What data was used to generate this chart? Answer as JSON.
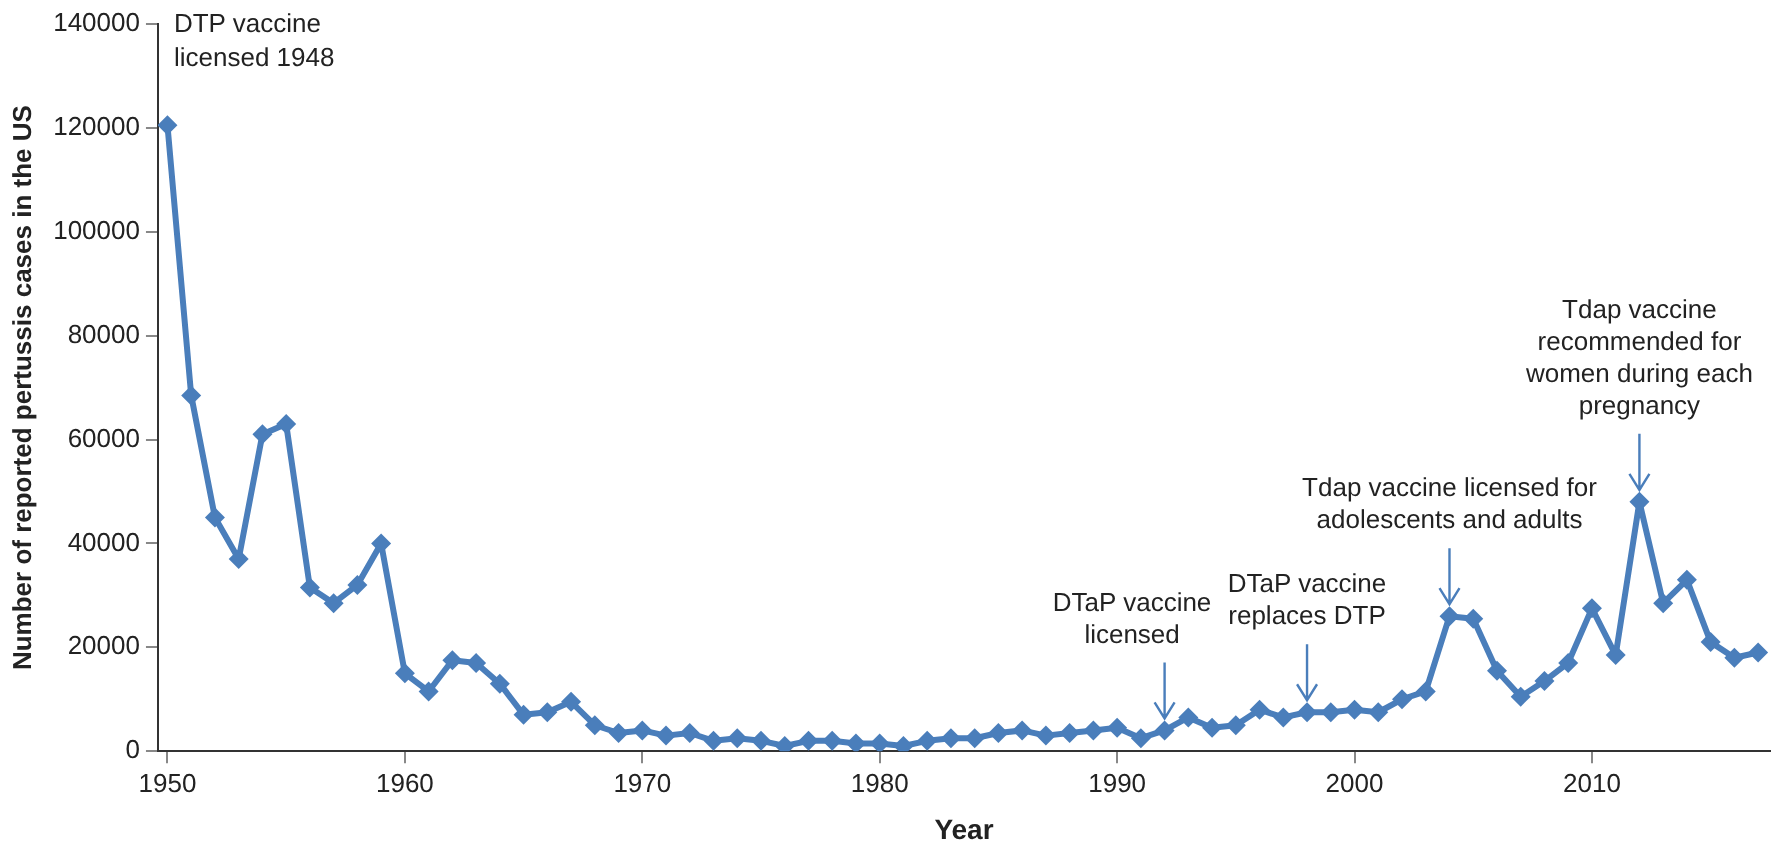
{
  "chart_data": {
    "type": "line",
    "xlabel": "Year",
    "ylabel": "Number of reported pertussis cases in the US",
    "x": [
      1950,
      1951,
      1952,
      1953,
      1954,
      1955,
      1956,
      1957,
      1958,
      1959,
      1960,
      1961,
      1962,
      1963,
      1964,
      1965,
      1966,
      1967,
      1968,
      1969,
      1970,
      1971,
      1972,
      1973,
      1974,
      1975,
      1976,
      1977,
      1978,
      1979,
      1980,
      1981,
      1982,
      1983,
      1984,
      1985,
      1986,
      1987,
      1988,
      1989,
      1990,
      1991,
      1992,
      1993,
      1994,
      1995,
      1996,
      1997,
      1998,
      1999,
      2000,
      2001,
      2002,
      2003,
      2004,
      2005,
      2006,
      2007,
      2008,
      2009,
      2010,
      2011,
      2012,
      2013,
      2014,
      2015,
      2016,
      2017
    ],
    "series": [
      {
        "color": "#4a7ebb",
        "values": [
          120500,
          68500,
          45000,
          37000,
          61000,
          63000,
          31500,
          28500,
          32000,
          40000,
          15000,
          11500,
          17500,
          17000,
          13000,
          7000,
          7500,
          9500,
          5000,
          3500,
          4000,
          3000,
          3500,
          2000,
          2500,
          2000,
          1000,
          2000,
          2000,
          1500,
          1500,
          1000,
          2000,
          2500,
          2500,
          3500,
          4000,
          3000,
          3500,
          4000,
          4500,
          2500,
          4000,
          6500,
          4500,
          5000,
          8000,
          6500,
          7500,
          7500,
          8000,
          7500,
          10000,
          11500,
          26000,
          25500,
          15500,
          10500,
          13500,
          17000,
          27500,
          18500,
          48000,
          28500,
          33000,
          21000,
          18000,
          19000
        ]
      }
    ],
    "xlim": [
      1949.6,
      2017.5
    ],
    "xticks": [
      1950,
      1960,
      1970,
      1980,
      1990,
      2000,
      2010
    ],
    "ylim": [
      0,
      140000
    ],
    "yticks": [
      0,
      20000,
      40000,
      60000,
      80000,
      100000,
      120000,
      140000
    ],
    "grid": false,
    "legend": false,
    "marker": "diamond",
    "line_style": "solid",
    "annotations": [
      "DTP vaccine\nlicensed 1948",
      {
        "text": "DTaP vaccine\nlicensed",
        "x": 1992,
        "y": 4000
      },
      {
        "text": "DTaP vaccine\nreplaces DTP",
        "x": 1998,
        "y": 7500
      },
      {
        "text": "Tdap vaccine licensed for\nadolescents and adults",
        "x": 2004,
        "y": 26000
      },
      {
        "text": "Tdap vaccine\nrecommended for\nwomen during each\npregnancy",
        "x": 2012,
        "y": 48000
      }
    ]
  }
}
